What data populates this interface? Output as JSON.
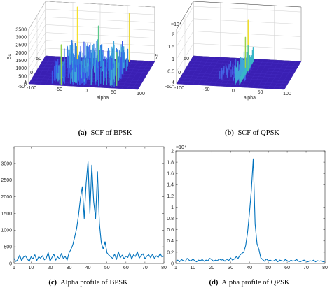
{
  "colors": {
    "line": "#0072BD",
    "axis": "#262626",
    "grid": "#cfcfcf",
    "surface_base": "#3a1fb3"
  },
  "chart_data": [
    {
      "id": "a",
      "type": "surface",
      "caption_letter": "(a)",
      "caption": "SCF of BPSK",
      "zlabel": "Sx",
      "xlabel": "alpha",
      "ylabel": "f",
      "zticks": [
        "0",
        "500",
        "1000",
        "1500",
        "2000",
        "2500",
        "3000",
        "3500"
      ],
      "alpha_ticks": [
        "-100",
        "-50",
        "0",
        "50",
        "100"
      ],
      "f_ticks": [
        "-50",
        "0",
        "50"
      ],
      "zlim": [
        0,
        3500
      ],
      "grid": true
    },
    {
      "id": "b",
      "type": "surface",
      "caption_letter": "(b)",
      "caption": "SCF of QPSK",
      "zlabel": "Sx",
      "xlabel": "alpha",
      "ylabel": "f",
      "exponent": "×10⁴",
      "zticks": [
        "0",
        "0.5",
        "1",
        "1.5",
        "2"
      ],
      "alpha_ticks": [
        "-100",
        "-50",
        "0",
        "50",
        "100"
      ],
      "f_ticks": [
        "-50",
        "0",
        "50"
      ],
      "zlim": [
        0,
        2.2
      ],
      "grid": true
    },
    {
      "id": "c",
      "type": "line",
      "caption_letter": "(c)",
      "caption": "Alpha profile of BPSK",
      "xlim": [
        1,
        80
      ],
      "ylim": [
        0,
        3500
      ],
      "xticks": [
        1,
        10,
        20,
        30,
        40,
        50,
        60,
        70,
        80
      ],
      "yticks": [
        0,
        500,
        1000,
        1500,
        2000,
        2500,
        3000
      ],
      "x": [
        1,
        2,
        3,
        4,
        5,
        6,
        7,
        8,
        9,
        10,
        11,
        12,
        13,
        14,
        15,
        16,
        17,
        18,
        19,
        20,
        21,
        22,
        23,
        24,
        25,
        26,
        27,
        28,
        29,
        30,
        31,
        32,
        33,
        34,
        35,
        36,
        37,
        38,
        39,
        40,
        41,
        42,
        43,
        44,
        45,
        46,
        47,
        48,
        49,
        50,
        51,
        52,
        53,
        54,
        55,
        56,
        57,
        58,
        59,
        60,
        61,
        62,
        63,
        64,
        65,
        66,
        67,
        68,
        69,
        70,
        71,
        72,
        73,
        74,
        75,
        76,
        77,
        78,
        79,
        80
      ],
      "values": [
        150,
        60,
        120,
        250,
        80,
        190,
        230,
        140,
        60,
        200,
        140,
        260,
        90,
        200,
        160,
        230,
        110,
        160,
        330,
        70,
        180,
        280,
        100,
        200,
        140,
        300,
        150,
        210,
        100,
        320,
        420,
        560,
        800,
        1050,
        1450,
        1950,
        2300,
        1350,
        2400,
        3050,
        1500,
        2950,
        1850,
        1350,
        2750,
        1200,
        620,
        430,
        650,
        320,
        250,
        200,
        150,
        280,
        120,
        350,
        170,
        250,
        140,
        220,
        180,
        320,
        130,
        260,
        210,
        350,
        160,
        240,
        290,
        140,
        220,
        260,
        170,
        280,
        150,
        230,
        180,
        300,
        190,
        230
      ],
      "grid": false
    },
    {
      "id": "d",
      "type": "line",
      "caption_letter": "(d)",
      "caption": "Alpha profile of QPSK",
      "exponent": "×10⁴",
      "xlim": [
        1,
        80
      ],
      "ylim": [
        0,
        2
      ],
      "xticks": [
        1,
        10,
        20,
        30,
        40,
        50,
        60,
        70,
        80
      ],
      "yticks": [
        0,
        0.2,
        0.4,
        0.6,
        0.8,
        1,
        1.2,
        1.4,
        1.6,
        1.8,
        2
      ],
      "x": [
        1,
        2,
        3,
        4,
        5,
        6,
        7,
        8,
        9,
        10,
        11,
        12,
        13,
        14,
        15,
        16,
        17,
        18,
        19,
        20,
        21,
        22,
        23,
        24,
        25,
        26,
        27,
        28,
        29,
        30,
        31,
        32,
        33,
        34,
        35,
        36,
        37,
        38,
        39,
        40,
        41,
        42,
        43,
        44,
        45,
        46,
        47,
        48,
        49,
        50,
        51,
        52,
        53,
        54,
        55,
        56,
        57,
        58,
        59,
        60,
        61,
        62,
        63,
        64,
        65,
        66,
        67,
        68,
        69,
        70,
        71,
        72,
        73,
        74,
        75,
        76,
        77,
        78,
        79,
        80
      ],
      "values": [
        0.04,
        0.06,
        0.03,
        0.07,
        0.05,
        0.04,
        0.09,
        0.06,
        0.04,
        0.08,
        0.05,
        0.03,
        0.06,
        0.05,
        0.07,
        0.04,
        0.06,
        0.05,
        0.09,
        0.07,
        0.04,
        0.06,
        0.05,
        0.08,
        0.06,
        0.07,
        0.04,
        0.08,
        0.05,
        0.1,
        0.06,
        0.08,
        0.12,
        0.09,
        0.15,
        0.18,
        0.2,
        0.32,
        0.55,
        0.9,
        1.3,
        1.86,
        0.7,
        0.35,
        0.25,
        0.1,
        0.07,
        0.04,
        0.08,
        0.05,
        0.06,
        0.04,
        0.05,
        0.07,
        0.03,
        0.06,
        0.05,
        0.04,
        0.07,
        0.05,
        0.03,
        0.06,
        0.04,
        0.05,
        0.07,
        0.04,
        0.03,
        0.05,
        0.06,
        0.04,
        0.03,
        0.05,
        0.04,
        0.06,
        0.03,
        0.05,
        0.04,
        0.05,
        0.03,
        0.04
      ],
      "grid": false
    }
  ]
}
